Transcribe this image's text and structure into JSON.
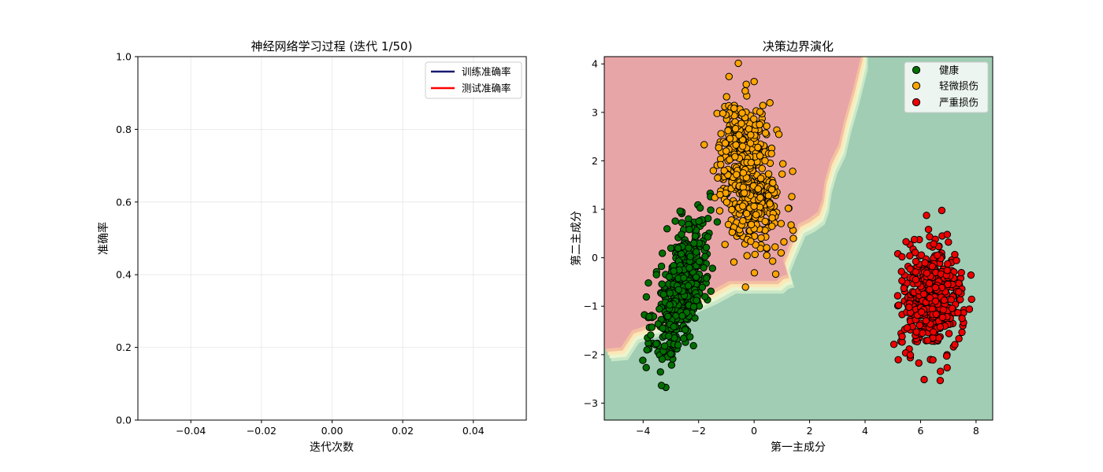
{
  "figure": {
    "background": "#ffffff"
  },
  "chart_data": [
    {
      "type": "line",
      "title": "神经网络学习过程 (迭代 1/50)",
      "xlabel": "迭代次数",
      "ylabel": "准确率",
      "xlim": [
        -0.055,
        0.055
      ],
      "ylim": [
        0.0,
        1.0
      ],
      "xticks": [
        -0.04,
        -0.02,
        0.0,
        0.02,
        0.04
      ],
      "xtick_labels": [
        "−0.04",
        "−0.02",
        "0.00",
        "0.02",
        "0.04"
      ],
      "yticks": [
        0.0,
        0.2,
        0.4,
        0.6,
        0.8,
        1.0
      ],
      "ytick_labels": [
        "0.0",
        "0.2",
        "0.4",
        "0.6",
        "0.8",
        "1.0"
      ],
      "grid": true,
      "legend_position": "top-right",
      "series": [
        {
          "name": "训练准确率",
          "color": "#191970",
          "x": [],
          "y": []
        },
        {
          "name": "测试准确率",
          "color": "#ff0000",
          "x": [],
          "y": []
        }
      ]
    },
    {
      "type": "scatter",
      "title": "决策边界演化",
      "xlabel": "第一主成分",
      "ylabel": "第二主成分",
      "xlim": [
        -5.4,
        8.6
      ],
      "ylim": [
        -3.35,
        4.15
      ],
      "xticks": [
        -4,
        -2,
        0,
        2,
        4,
        6,
        8
      ],
      "xtick_labels": [
        "−4",
        "−2",
        "0",
        "2",
        "4",
        "6",
        "8"
      ],
      "yticks": [
        -3,
        -2,
        -1,
        0,
        1,
        2,
        3,
        4
      ],
      "ytick_labels": [
        "−3",
        "−2",
        "−1",
        "0",
        "1",
        "2",
        "3",
        "4"
      ],
      "grid": false,
      "legend_position": "top-right",
      "decision_regions": [
        {
          "class": "轻微损伤",
          "color": "#e8a5a7",
          "boundary": [
            [
              -5.4,
              -1.88
            ],
            [
              -4.8,
              -1.85
            ],
            [
              -4.4,
              -1.5
            ],
            [
              -3.6,
              -1.35
            ],
            [
              -2.8,
              -1.0
            ],
            [
              -1.6,
              -0.7
            ],
            [
              -0.9,
              -0.48
            ],
            [
              0.8,
              -0.48
            ],
            [
              1.0,
              -0.38
            ],
            [
              1.2,
              -0.35
            ],
            [
              1.05,
              -0.05
            ],
            [
              1.3,
              0.3
            ],
            [
              1.6,
              0.7
            ],
            [
              1.95,
              0.8
            ],
            [
              2.3,
              0.95
            ],
            [
              2.45,
              1.2
            ],
            [
              2.55,
              1.6
            ],
            [
              2.75,
              2.0
            ],
            [
              3.05,
              2.35
            ],
            [
              3.25,
              2.85
            ],
            [
              3.55,
              3.45
            ],
            [
              3.85,
              4.15
            ]
          ]
        },
        {
          "class": "健康",
          "color": "#a0cdb3"
        }
      ],
      "boundary_band_colors": [
        "#f4c1a0",
        "#fbe8b6",
        "#eaf4cf",
        "#c9e7c6"
      ],
      "series": [
        {
          "name": "健康",
          "color": "#007000",
          "edgecolor": "#000000",
          "count": 500,
          "center": [
            -2.6,
            -0.6
          ],
          "std": [
            0.5,
            0.75
          ],
          "corr": 0.6
        },
        {
          "name": "轻微损伤",
          "color": "#ffa500",
          "edgecolor": "#000000",
          "count": 500,
          "center": [
            -0.2,
            1.7
          ],
          "std": [
            0.55,
            0.75
          ],
          "corr": -0.3
        },
        {
          "name": "严重损伤",
          "color": "#ee0000",
          "edgecolor": "#000000",
          "count": 450,
          "center": [
            6.4,
            -0.85
          ],
          "std": [
            0.55,
            0.55
          ],
          "corr": 0.0
        }
      ]
    }
  ]
}
